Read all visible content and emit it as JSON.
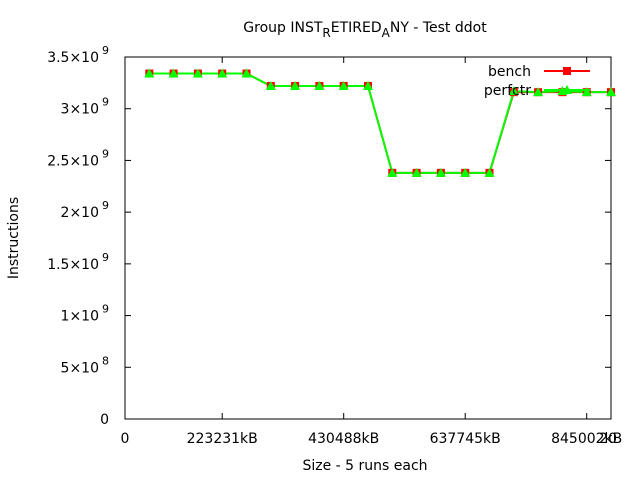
{
  "chart_data": {
    "type": "line",
    "title": "Group INST_RETIRED_ANY - Test ddot",
    "title_parts": [
      "Group INST",
      "R",
      "ETIRED",
      "A",
      "NY - Test ddot"
    ],
    "xlabel": "Size - 5 runs each",
    "ylabel": "Instructions",
    "xlim": [
      0,
      20
    ],
    "ylim": [
      0,
      3500000000
    ],
    "x_ticks": [
      {
        "x": 0,
        "label": "0"
      },
      {
        "x": 4,
        "label": "223231kB"
      },
      {
        "x": 9,
        "label": "430488kB"
      },
      {
        "x": 14,
        "label": "637745kB"
      },
      {
        "x": 19,
        "label": "845002kB"
      },
      {
        "x": 20,
        "label": "20"
      }
    ],
    "y_ticks": [
      {
        "y": 0,
        "mantissa": "0",
        "exp": ""
      },
      {
        "y": 500000000,
        "mantissa": "5×10",
        "exp": "8"
      },
      {
        "y": 1000000000,
        "mantissa": "1×10",
        "exp": "9"
      },
      {
        "y": 1500000000,
        "mantissa": "1.5×10",
        "exp": "9"
      },
      {
        "y": 2000000000,
        "mantissa": "2×10",
        "exp": "9"
      },
      {
        "y": 2500000000,
        "mantissa": "2.5×10",
        "exp": "9"
      },
      {
        "y": 3000000000,
        "mantissa": "3×10",
        "exp": "9"
      },
      {
        "y": 3500000000,
        "mantissa": "3.5×10",
        "exp": "9"
      }
    ],
    "grid": false,
    "legend_position": "top-right",
    "x": [
      1,
      2,
      3,
      4,
      5,
      6,
      7,
      8,
      9,
      10,
      11,
      12,
      13,
      14,
      15,
      16,
      17,
      18,
      19,
      20
    ],
    "series": [
      {
        "name": "bench",
        "color": "#ff0000",
        "marker": "square",
        "values": [
          3340000000,
          3340000000,
          3340000000,
          3340000000,
          3340000000,
          3220000000,
          3220000000,
          3220000000,
          3220000000,
          3220000000,
          2380000000,
          2380000000,
          2380000000,
          2380000000,
          2380000000,
          3160000000,
          3160000000,
          3160000000,
          3160000000,
          3160000000
        ]
      },
      {
        "name": "perfctr",
        "color": "#00ff00",
        "marker": "triangle",
        "values": [
          3340000000,
          3340000000,
          3340000000,
          3340000000,
          3340000000,
          3220000000,
          3220000000,
          3220000000,
          3220000000,
          3220000000,
          2380000000,
          2380000000,
          2380000000,
          2380000000,
          2380000000,
          3170000000,
          3160000000,
          3170000000,
          3160000000,
          3160000000
        ]
      }
    ]
  }
}
